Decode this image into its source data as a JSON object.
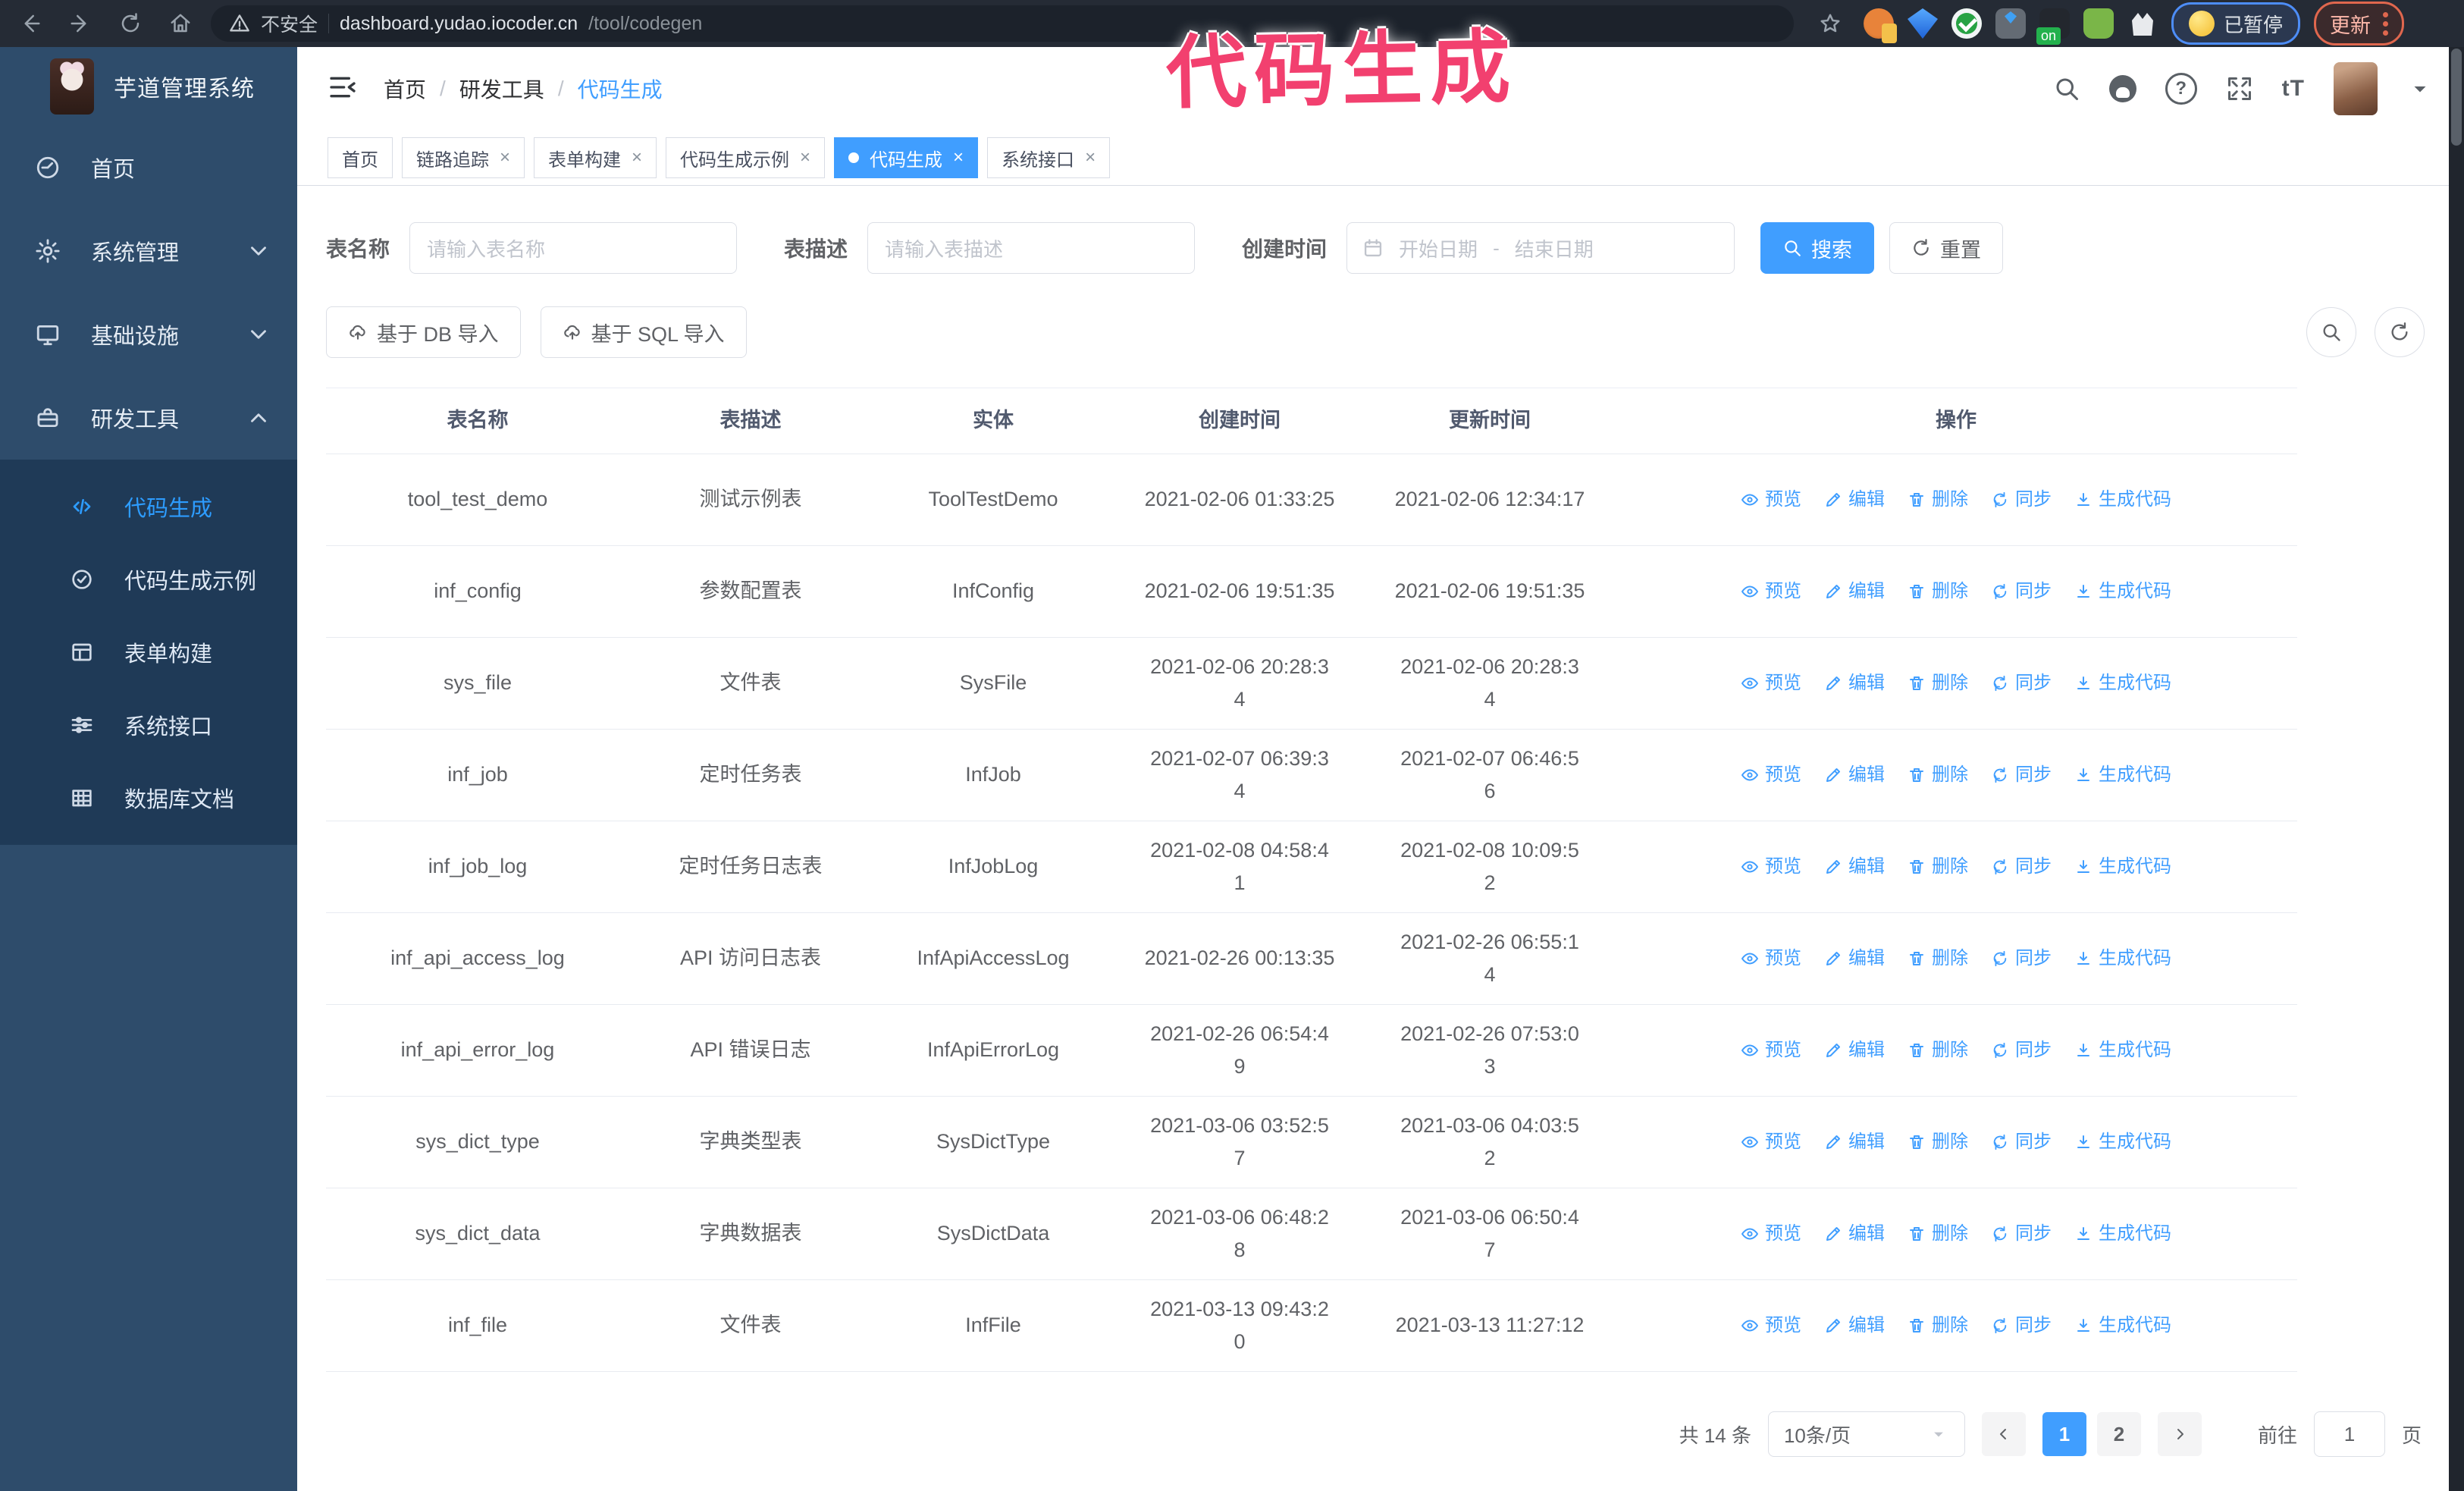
{
  "browser": {
    "security_label": "不安全",
    "url_host": "dashboard.yudao.iocoder.cn",
    "url_path": "/tool/codegen",
    "paused_badge": "已暂停",
    "update_button": "更新"
  },
  "annotation": "代码生成",
  "header": {
    "logo_title": "芋道管理系统",
    "breadcrumb": [
      "首页",
      "研发工具",
      "代码生成"
    ]
  },
  "sidebar": {
    "items": [
      {
        "key": "home",
        "label": "首页",
        "icon": "gauge",
        "arrow": ""
      },
      {
        "key": "system",
        "label": "系统管理",
        "icon": "gear",
        "arrow": "down"
      },
      {
        "key": "infra",
        "label": "基础设施",
        "icon": "monitor",
        "arrow": "down"
      },
      {
        "key": "devtools",
        "label": "研发工具",
        "icon": "tools",
        "arrow": "up"
      }
    ],
    "sub_items": [
      {
        "key": "codegen",
        "label": "代码生成",
        "icon": "code",
        "active": true
      },
      {
        "key": "codegen-example",
        "label": "代码生成示例",
        "icon": "example",
        "active": false
      },
      {
        "key": "form-builder",
        "label": "表单构建",
        "icon": "form",
        "active": false
      },
      {
        "key": "system-api",
        "label": "系统接口",
        "icon": "api",
        "active": false
      },
      {
        "key": "db-doc",
        "label": "数据库文档",
        "icon": "db",
        "active": false
      }
    ]
  },
  "tabs": [
    {
      "key": "home",
      "label": "首页",
      "active": false,
      "closable": false
    },
    {
      "key": "tracing",
      "label": "链路追踪",
      "active": false,
      "closable": true
    },
    {
      "key": "form-builder",
      "label": "表单构建",
      "active": false,
      "closable": true
    },
    {
      "key": "codegen-example",
      "label": "代码生成示例",
      "active": false,
      "closable": true
    },
    {
      "key": "codegen",
      "label": "代码生成",
      "active": true,
      "closable": true
    },
    {
      "key": "system-api",
      "label": "系统接口",
      "active": false,
      "closable": true
    }
  ],
  "filters": {
    "name_label": "表名称",
    "name_placeholder": "请输入表名称",
    "desc_label": "表描述",
    "desc_placeholder": "请输入表描述",
    "time_label": "创建时间",
    "start_placeholder": "开始日期",
    "range_separator": "-",
    "end_placeholder": "结束日期",
    "search_label": "搜索",
    "reset_label": "重置"
  },
  "toolbar": {
    "db_import_label": "基于 DB 导入",
    "sql_import_label": "基于 SQL 导入"
  },
  "table": {
    "headers": [
      "表名称",
      "表描述",
      "实体",
      "创建时间",
      "更新时间",
      "操作"
    ],
    "row_actions": [
      {
        "key": "preview",
        "label": "预览",
        "icon": "eye"
      },
      {
        "key": "edit",
        "label": "编辑",
        "icon": "edit"
      },
      {
        "key": "delete",
        "label": "删除",
        "icon": "delete"
      },
      {
        "key": "sync",
        "label": "同步",
        "icon": "sync"
      },
      {
        "key": "generate-code",
        "label": "生成代码",
        "icon": "download"
      }
    ],
    "rows": [
      {
        "name": "tool_test_demo",
        "desc": "测试示例表",
        "entity": "ToolTestDemo",
        "created": "2021-02-06 01:33:25",
        "updated": "2021-02-06 12:34:17"
      },
      {
        "name": "inf_config",
        "desc": "参数配置表",
        "entity": "InfConfig",
        "created": "2021-02-06 19:51:35",
        "updated": "2021-02-06 19:51:35"
      },
      {
        "name": "sys_file",
        "desc": "文件表",
        "entity": "SysFile",
        "created": "2021-02-06 20:28:3\n4",
        "updated": "2021-02-06 20:28:3\n4"
      },
      {
        "name": "inf_job",
        "desc": "定时任务表",
        "entity": "InfJob",
        "created": "2021-02-07 06:39:3\n4",
        "updated": "2021-02-07 06:46:5\n6"
      },
      {
        "name": "inf_job_log",
        "desc": "定时任务日志表",
        "entity": "InfJobLog",
        "created": "2021-02-08 04:58:4\n1",
        "updated": "2021-02-08 10:09:5\n2"
      },
      {
        "name": "inf_api_access_log",
        "desc": "API 访问日志表",
        "entity": "InfApiAccessLog",
        "created": "2021-02-26 00:13:35",
        "updated": "2021-02-26 06:55:1\n4"
      },
      {
        "name": "inf_api_error_log",
        "desc": "API 错误日志",
        "entity": "InfApiErrorLog",
        "created": "2021-02-26 06:54:4\n9",
        "updated": "2021-02-26 07:53:0\n3"
      },
      {
        "name": "sys_dict_type",
        "desc": "字典类型表",
        "entity": "SysDictType",
        "created": "2021-03-06 03:52:5\n7",
        "updated": "2021-03-06 04:03:5\n2"
      },
      {
        "name": "sys_dict_data",
        "desc": "字典数据表",
        "entity": "SysDictData",
        "created": "2021-03-06 06:48:2\n8",
        "updated": "2021-03-06 06:50:4\n7"
      },
      {
        "name": "inf_file",
        "desc": "文件表",
        "entity": "InfFile",
        "created": "2021-03-13 09:43:2\n0",
        "updated": "2021-03-13 11:27:12"
      }
    ]
  },
  "pagination": {
    "total_label": "共 14 条",
    "page_size": "10条/页",
    "pages": [
      "1",
      "2"
    ],
    "active_page": "1",
    "goto_label": "前往",
    "goto_value": "1",
    "page_unit": "页"
  },
  "colors": {
    "accent": "#409eff",
    "sidebar_bg": "#2e4c6b",
    "submenu_bg": "#1f3a57",
    "annotation_pink": "#f2406f"
  }
}
